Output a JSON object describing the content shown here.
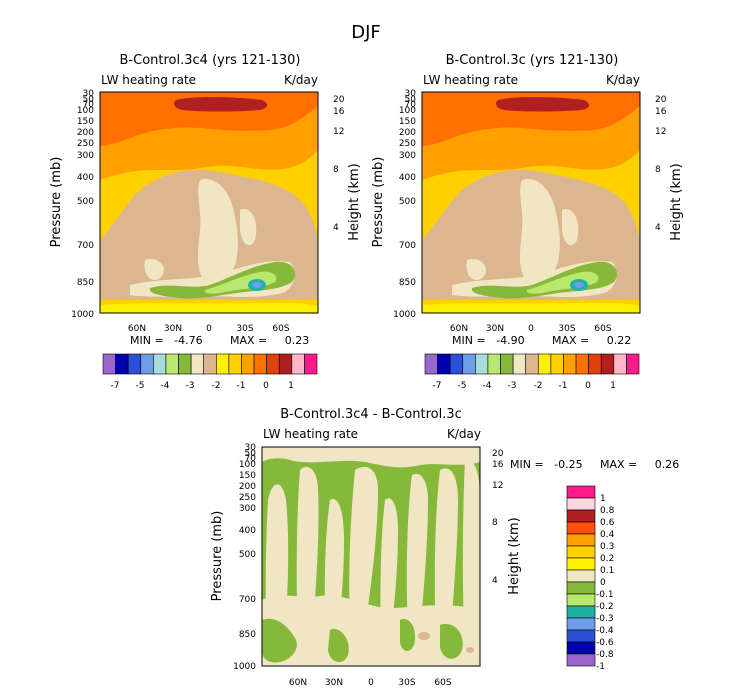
{
  "figure": {
    "season": "DJF"
  },
  "chart_data": [
    {
      "type": "heatmap",
      "title": "B-Control.3c4 (yrs 121-130)",
      "variable": "LW heating rate",
      "units": "K/day",
      "ylabel": "Pressure (mb)",
      "ylabel_right": "Height (km)",
      "x_ticks": [
        "60N",
        "30N",
        "0",
        "30S",
        "60S"
      ],
      "y_ticks": [
        "30",
        "50",
        "70",
        "100",
        "150",
        "200",
        "250",
        "300",
        "400",
        "500",
        "700",
        "850",
        "1000"
      ],
      "height_ticks": [
        "20",
        "16",
        "12",
        "8",
        "4"
      ],
      "min_text": "MIN =   -4.76",
      "max_text": "MAX =     0.23",
      "colorbar_labels": [
        "-7",
        "-5",
        "-4",
        "-3",
        "-2",
        "-1",
        "0",
        "1"
      ],
      "colorbar_colors": [
        "#9966cc",
        "#0000aa",
        "#2b50d8",
        "#6f9ee8",
        "#a8dcdc",
        "#b8e86e",
        "#86b83a",
        "#f0e6c4",
        "#dcb68e",
        "#fff000",
        "#ffd000",
        "#ffa000",
        "#ff7000",
        "#e04010",
        "#b02020",
        "#ffb6c8",
        "#ff1a8c"
      ]
    },
    {
      "type": "heatmap",
      "title": "B-Control.3c (yrs 121-130)",
      "variable": "LW heating rate",
      "units": "K/day",
      "ylabel": "Pressure (mb)",
      "ylabel_right": "Height (km)",
      "x_ticks": [
        "60N",
        "30N",
        "0",
        "30S",
        "60S"
      ],
      "y_ticks": [
        "30",
        "50",
        "70",
        "100",
        "150",
        "200",
        "250",
        "300",
        "400",
        "500",
        "700",
        "850",
        "1000"
      ],
      "height_ticks": [
        "20",
        "16",
        "12",
        "8",
        "4"
      ],
      "min_text": "MIN =   -4.90",
      "max_text": "MAX =     0.22",
      "colorbar_labels": [
        "-7",
        "-5",
        "-4",
        "-3",
        "-2",
        "-1",
        "0",
        "1"
      ],
      "colorbar_colors": [
        "#9966cc",
        "#0000aa",
        "#2b50d8",
        "#6f9ee8",
        "#a8dcdc",
        "#b8e86e",
        "#86b83a",
        "#f0e6c4",
        "#dcb68e",
        "#fff000",
        "#ffd000",
        "#ffa000",
        "#ff7000",
        "#e04010",
        "#b02020",
        "#ffb6c8",
        "#ff1a8c"
      ]
    },
    {
      "type": "heatmap",
      "title": "B-Control.3c4 - B-Control.3c",
      "variable": "LW heating rate",
      "units": "K/day",
      "ylabel": "Pressure (mb)",
      "ylabel_right": "Height (km)",
      "x_ticks": [
        "60N",
        "30N",
        "0",
        "30S",
        "60S"
      ],
      "y_ticks": [
        "30",
        "50",
        "70",
        "100",
        "150",
        "200",
        "250",
        "300",
        "400",
        "500",
        "700",
        "850",
        "1000"
      ],
      "height_ticks": [
        "20",
        "16",
        "12",
        "8",
        "4"
      ],
      "min_text": "MIN =   -0.25",
      "max_text": "MAX =     0.26",
      "colorbar_labels": [
        "1",
        "0.8",
        "0.6",
        "0.4",
        "0.3",
        "0.2",
        "0.1",
        "0",
        "-0.1",
        "-0.2",
        "-0.3",
        "-0.4",
        "-0.6",
        "-0.8",
        "-1"
      ],
      "colorbar_colors": [
        "#ff1a8c",
        "#ffd6e0",
        "#b02020",
        "#ff5010",
        "#ffa000",
        "#ffd000",
        "#fff000",
        "#f0e6c4",
        "#86b83a",
        "#b8e86e",
        "#20b0a8",
        "#6f9ee8",
        "#2b50d8",
        "#0000aa",
        "#9966cc"
      ]
    }
  ]
}
